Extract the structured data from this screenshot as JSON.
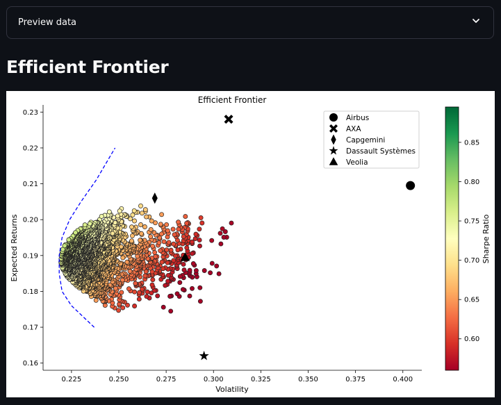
{
  "expander": {
    "label": "Preview data",
    "icon": "chevron-down-icon"
  },
  "page_title": "Efficient Frontier",
  "chart_data": {
    "type": "scatter",
    "title": "Efficient Frontier",
    "xlabel": "Volatility",
    "ylabel": "Expected Returns",
    "xlim": [
      0.21,
      0.41
    ],
    "ylim": [
      0.158,
      0.232
    ],
    "xticks": [
      "0.225",
      "0.250",
      "0.275",
      "0.300",
      "0.325",
      "0.350",
      "0.375",
      "0.400"
    ],
    "yticks": [
      "0.16",
      "0.17",
      "0.18",
      "0.19",
      "0.20",
      "0.21",
      "0.22",
      "0.23"
    ],
    "grid": false,
    "legend_position": "top-right",
    "colorbar": {
      "label": "Sharpe Ratio",
      "range": [
        0.56,
        0.895
      ],
      "ticks": [
        "0.60",
        "0.65",
        "0.70",
        "0.75",
        "0.80",
        "0.85"
      ],
      "colormap": "RdYlGn"
    },
    "assets": [
      {
        "name": "Airbus",
        "marker": "circle",
        "x": 0.404,
        "y": 0.2095
      },
      {
        "name": "AXA",
        "marker": "x",
        "x": 0.308,
        "y": 0.228
      },
      {
        "name": "Capgemini",
        "marker": "diamond",
        "x": 0.269,
        "y": 0.206
      },
      {
        "name": "Dassault Systèmes",
        "marker": "star",
        "x": 0.295,
        "y": 0.162
      },
      {
        "name": "Veolia",
        "marker": "triangle",
        "x": 0.285,
        "y": 0.1895
      }
    ],
    "frontier": {
      "style": "dashed",
      "color": "#0000ff",
      "x": [
        0.237,
        0.225,
        0.22,
        0.2185,
        0.2185,
        0.22,
        0.224,
        0.23,
        0.238,
        0.248
      ],
      "y": [
        0.17,
        0.176,
        0.18,
        0.185,
        0.19,
        0.195,
        0.2,
        0.205,
        0.211,
        0.22
      ]
    },
    "portfolios": {
      "count_drawn": 2600,
      "sharpe_range": [
        0.57,
        0.89
      ]
    }
  }
}
